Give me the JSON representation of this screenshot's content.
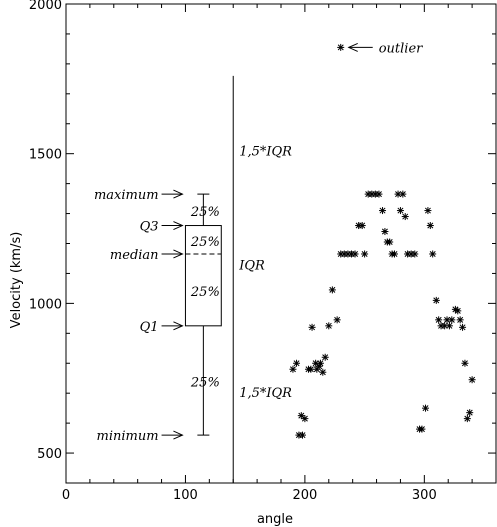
{
  "chart_data": {
    "type": "scatter",
    "xlabel": "angle",
    "ylabel": "Velocity (km/s)",
    "xlim": [
      0,
      360
    ],
    "ylim": [
      400,
      2000
    ],
    "xticks": [
      0,
      100,
      200,
      300
    ],
    "yticks": [
      500,
      1000,
      1500,
      2000
    ],
    "x_minor_step": 20,
    "y_minor_step": 100,
    "grid": false,
    "boxplot": {
      "x_range": [
        100,
        130
      ],
      "minimum": 560,
      "q1": 925,
      "median": 1165,
      "q3": 1260,
      "maximum": 1365
    },
    "iqr_line": {
      "x": 140,
      "y_range": [
        400,
        1760
      ]
    },
    "annotations": {
      "maximum": "maximum",
      "q3": "Q3",
      "median": "median",
      "q1": "Q1",
      "minimum": "minimum",
      "pct_top": "25%",
      "pct_upper": "25%",
      "pct_lower": "25%",
      "pct_bottom": "25%",
      "iqr_upper": "1,5*IQR",
      "iqr_mid": "IQR",
      "iqr_lower": "1,5*IQR",
      "outlier": "outlier"
    },
    "points": [
      [
        190,
        780
      ],
      [
        193,
        800
      ],
      [
        195,
        560
      ],
      [
        198,
        560
      ],
      [
        197,
        625
      ],
      [
        200,
        615
      ],
      [
        203,
        780
      ],
      [
        205,
        780
      ],
      [
        206,
        920
      ],
      [
        209,
        800
      ],
      [
        210,
        780
      ],
      [
        212,
        790
      ],
      [
        213,
        800
      ],
      [
        215,
        770
      ],
      [
        217,
        820
      ],
      [
        220,
        925
      ],
      [
        223,
        1045
      ],
      [
        227,
        945
      ],
      [
        230,
        1165
      ],
      [
        233,
        1165
      ],
      [
        236,
        1165
      ],
      [
        239,
        1165
      ],
      [
        242,
        1165
      ],
      [
        245,
        1260
      ],
      [
        248,
        1260
      ],
      [
        250,
        1165
      ],
      [
        253,
        1365
      ],
      [
        256,
        1365
      ],
      [
        259,
        1365
      ],
      [
        262,
        1365
      ],
      [
        265,
        1310
      ],
      [
        267,
        1240
      ],
      [
        269,
        1205
      ],
      [
        271,
        1205
      ],
      [
        273,
        1165
      ],
      [
        275,
        1165
      ],
      [
        278,
        1365
      ],
      [
        280,
        1310
      ],
      [
        282,
        1365
      ],
      [
        284,
        1290
      ],
      [
        286,
        1165
      ],
      [
        289,
        1165
      ],
      [
        292,
        1165
      ],
      [
        296,
        580
      ],
      [
        298,
        580
      ],
      [
        301,
        650
      ],
      [
        303,
        1310
      ],
      [
        305,
        1260
      ],
      [
        307,
        1165
      ],
      [
        310,
        1010
      ],
      [
        312,
        945
      ],
      [
        314,
        925
      ],
      [
        317,
        925
      ],
      [
        319,
        945
      ],
      [
        321,
        925
      ],
      [
        323,
        945
      ],
      [
        326,
        980
      ],
      [
        328,
        975
      ],
      [
        330,
        945
      ],
      [
        332,
        920
      ],
      [
        334,
        800
      ],
      [
        336,
        615
      ],
      [
        338,
        635
      ],
      [
        340,
        745
      ],
      [
        230,
        1855
      ]
    ]
  }
}
